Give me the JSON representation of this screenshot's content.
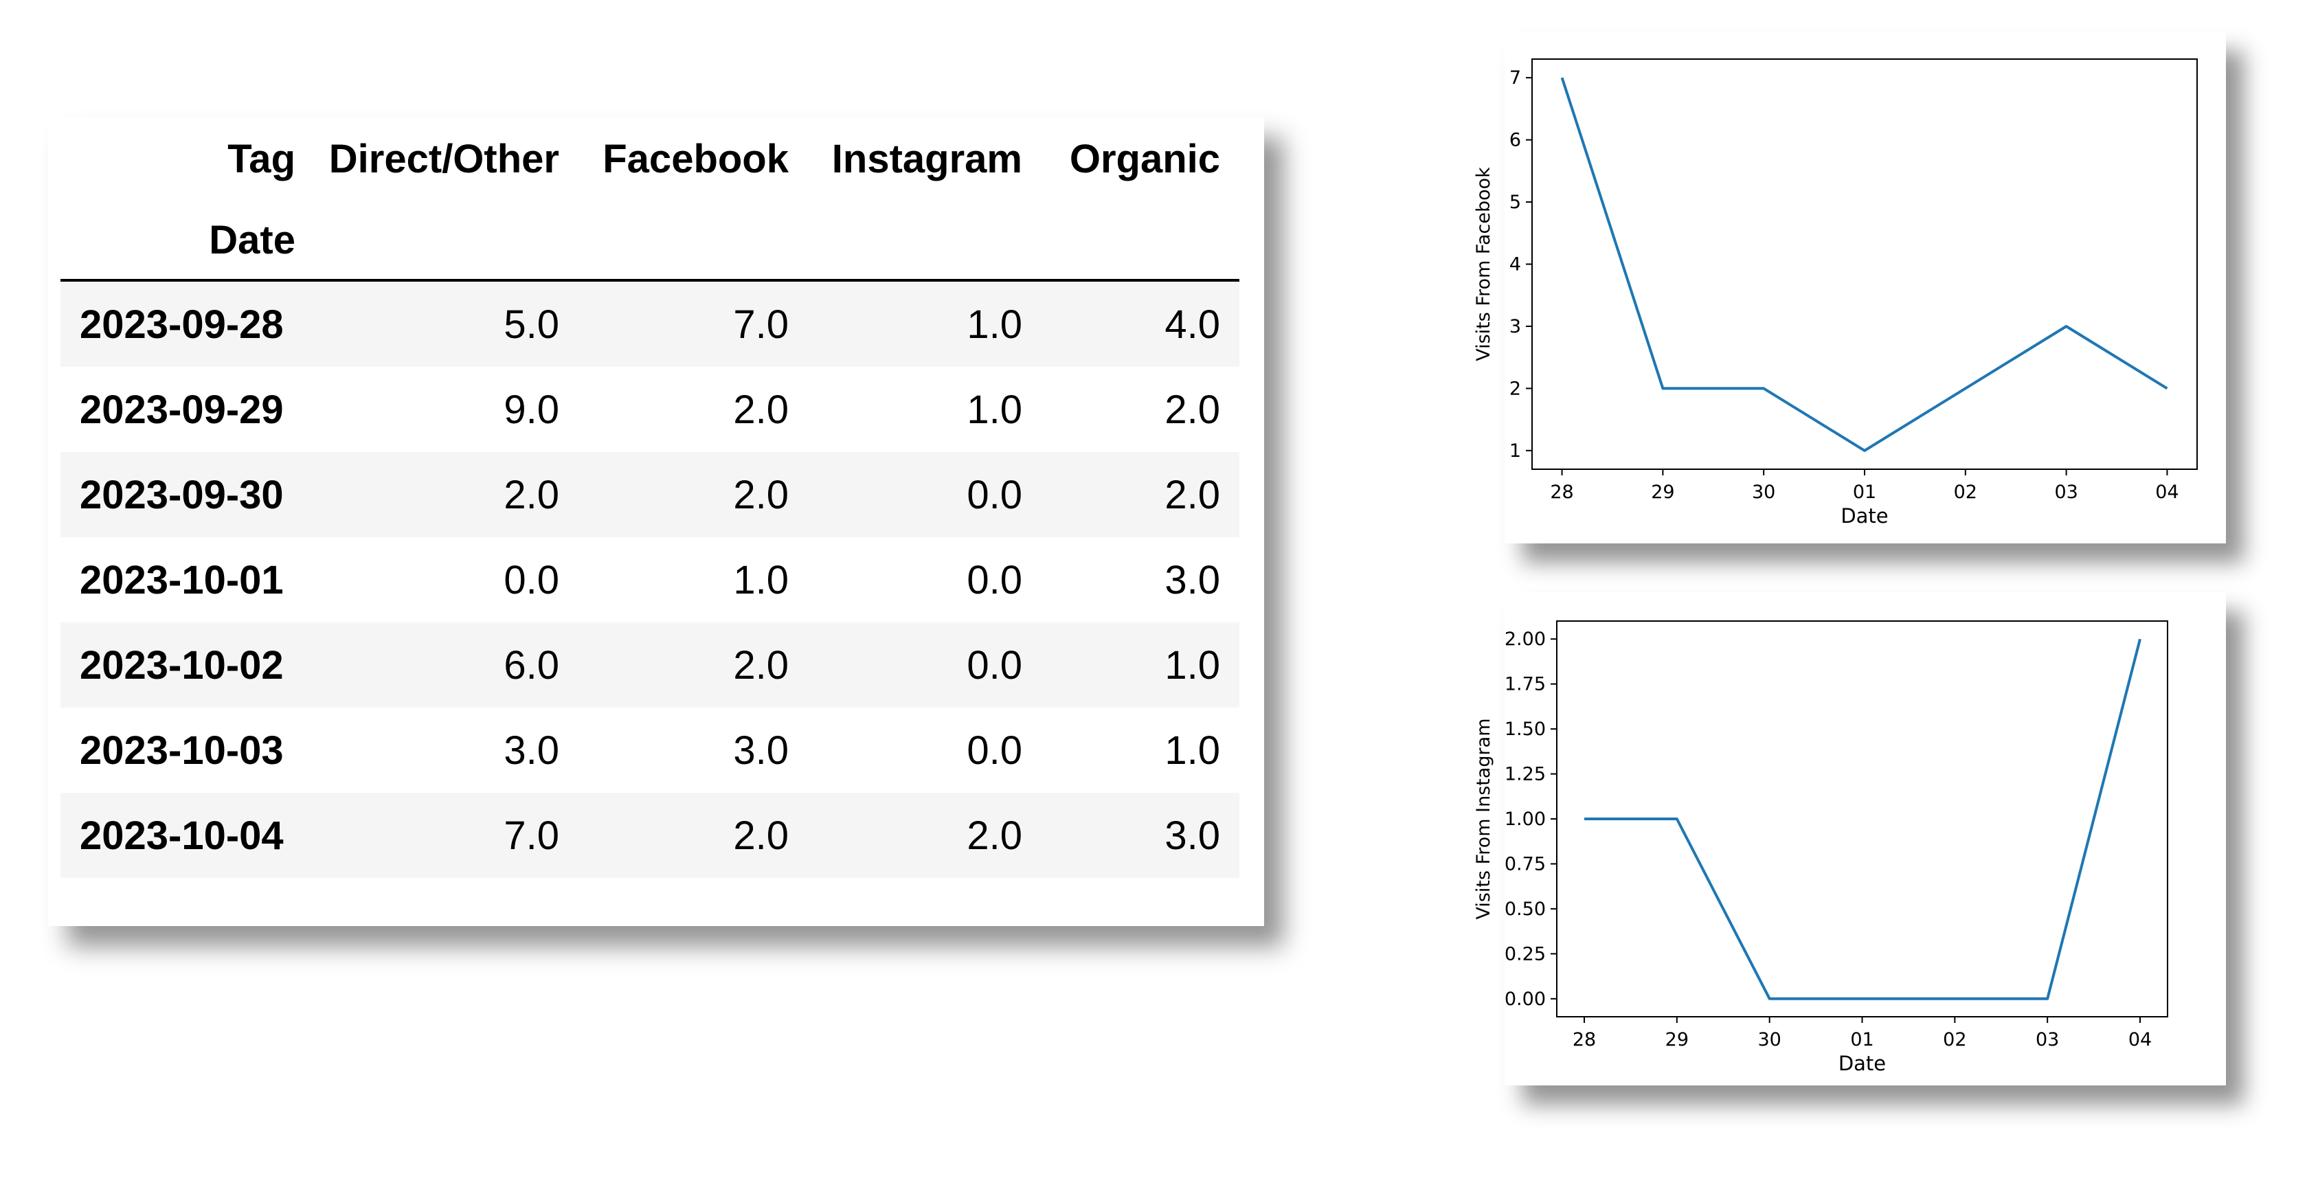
{
  "table": {
    "header_row": [
      "Tag",
      "Direct/Other",
      "Facebook",
      "Instagram",
      "Organic"
    ],
    "index_name": "Date",
    "rows": [
      {
        "date": "2023-09-28",
        "values": [
          "5.0",
          "7.0",
          "1.0",
          "4.0"
        ]
      },
      {
        "date": "2023-09-29",
        "values": [
          "9.0",
          "2.0",
          "1.0",
          "2.0"
        ]
      },
      {
        "date": "2023-09-30",
        "values": [
          "2.0",
          "2.0",
          "0.0",
          "2.0"
        ]
      },
      {
        "date": "2023-10-01",
        "values": [
          "0.0",
          "1.0",
          "0.0",
          "3.0"
        ]
      },
      {
        "date": "2023-10-02",
        "values": [
          "6.0",
          "2.0",
          "0.0",
          "1.0"
        ]
      },
      {
        "date": "2023-10-03",
        "values": [
          "3.0",
          "3.0",
          "0.0",
          "1.0"
        ]
      },
      {
        "date": "2023-10-04",
        "values": [
          "7.0",
          "2.0",
          "2.0",
          "3.0"
        ]
      }
    ]
  },
  "colors": {
    "line": "#1f77b4"
  },
  "chart_data": [
    {
      "type": "line",
      "x": [
        "2023-09-28",
        "2023-09-29",
        "2023-09-30",
        "2023-10-01",
        "2023-10-02",
        "2023-10-03",
        "2023-10-04"
      ],
      "xtick_labels": [
        "28",
        "29",
        "30",
        "01",
        "02",
        "03",
        "04"
      ],
      "values": [
        7,
        2,
        2,
        1,
        2,
        3,
        2
      ],
      "ytick_values": [
        1,
        2,
        3,
        4,
        5,
        6,
        7
      ],
      "ytick_labels": [
        "1",
        "2",
        "3",
        "4",
        "5",
        "6",
        "7"
      ],
      "ylim": [
        0.7,
        7.3
      ],
      "xlabel": "Date",
      "ylabel": "Visits From Facebook",
      "grid": false
    },
    {
      "type": "line",
      "x": [
        "2023-09-28",
        "2023-09-29",
        "2023-09-30",
        "2023-10-01",
        "2023-10-02",
        "2023-10-03",
        "2023-10-04"
      ],
      "xtick_labels": [
        "28",
        "29",
        "30",
        "01",
        "02",
        "03",
        "04"
      ],
      "values": [
        1,
        1,
        0,
        0,
        0,
        0,
        2
      ],
      "ytick_values": [
        0,
        0.25,
        0.5,
        0.75,
        1,
        1.25,
        1.5,
        1.75,
        2
      ],
      "ytick_labels": [
        "0.00",
        "0.25",
        "0.50",
        "0.75",
        "1.00",
        "1.25",
        "1.50",
        "1.75",
        "2.00"
      ],
      "ylim": [
        -0.1,
        2.1
      ],
      "xlabel": "Date",
      "ylabel": "Visits From Instagram",
      "grid": false
    }
  ]
}
